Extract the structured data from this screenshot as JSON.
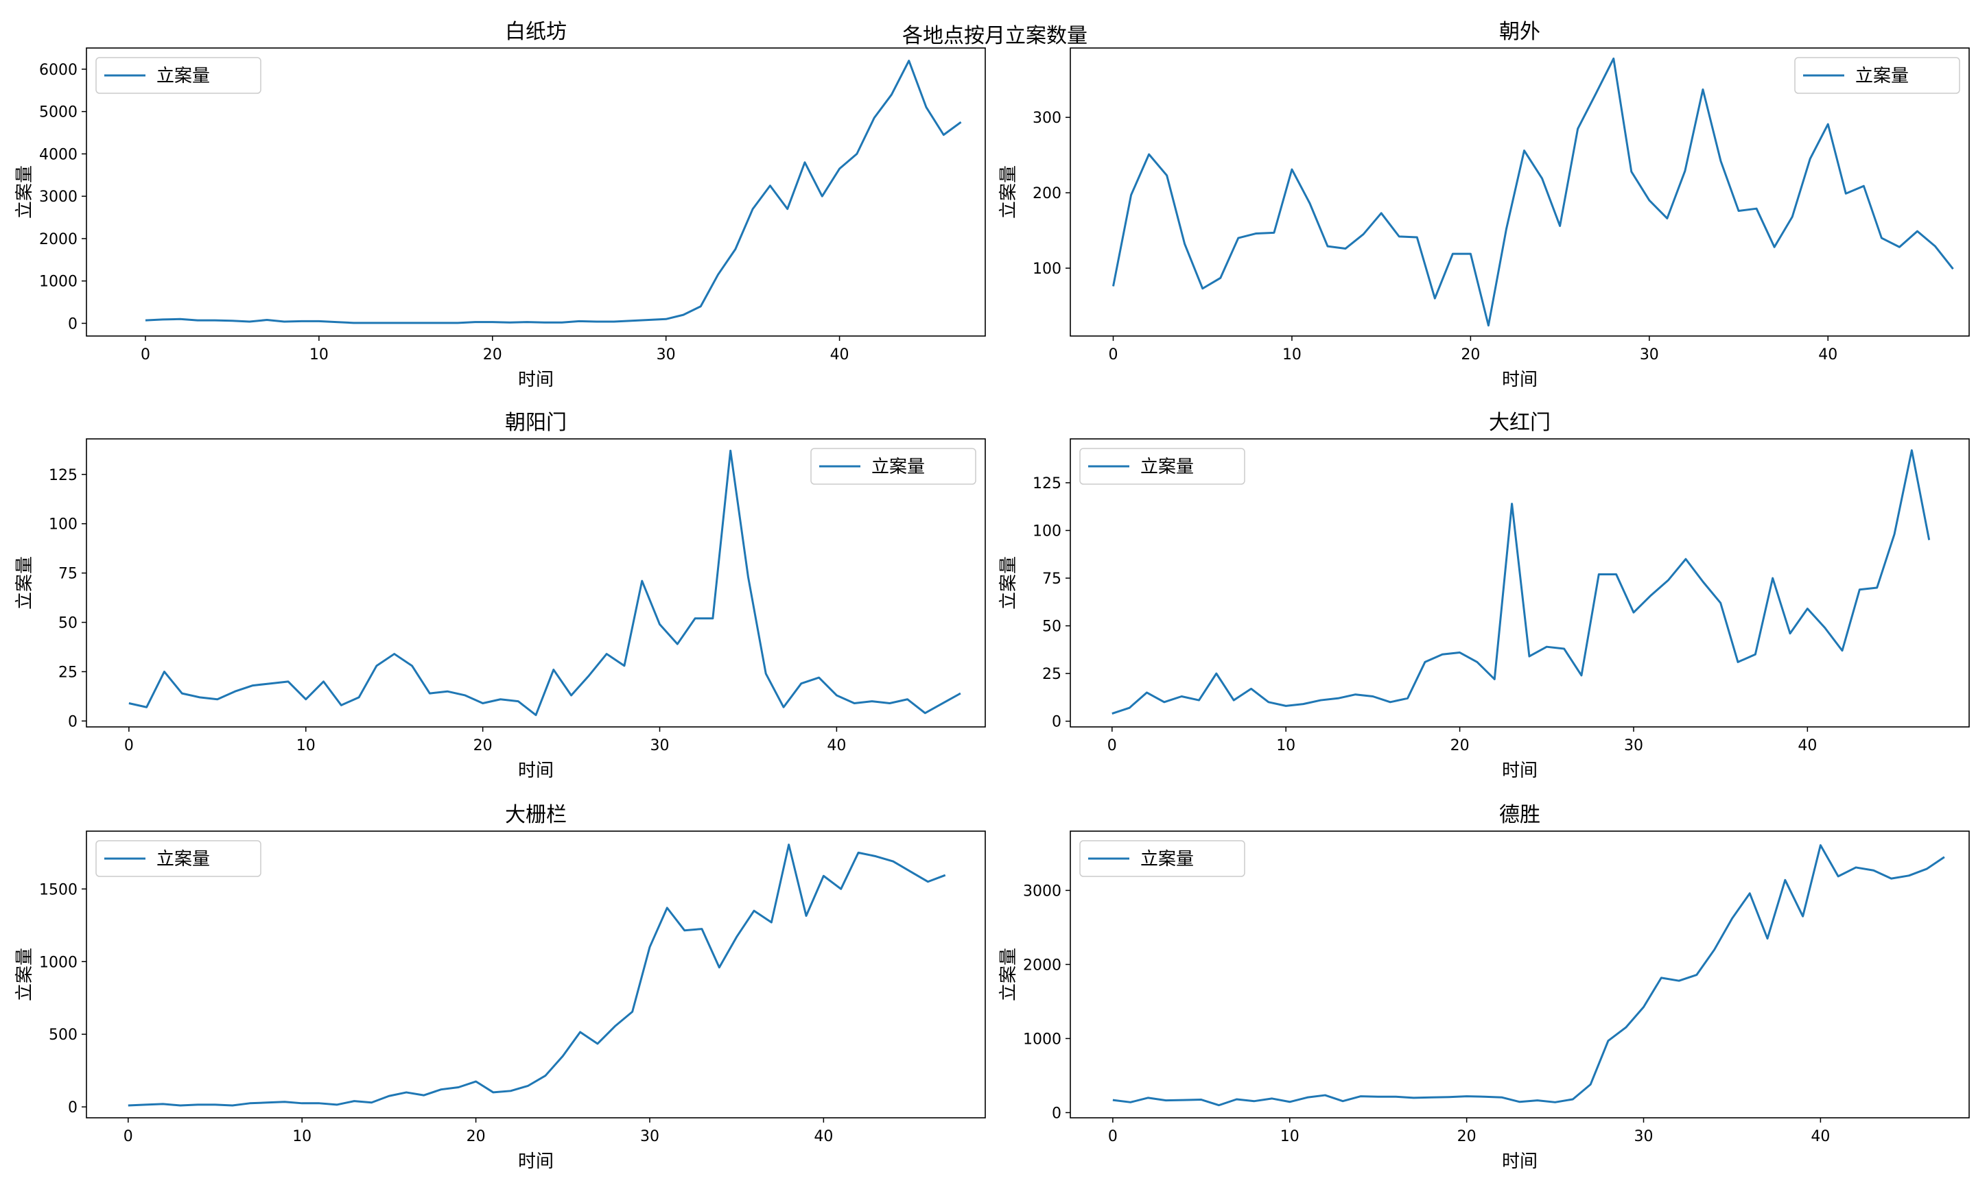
{
  "suptitle": "各地点按月立案数量",
  "colors": {
    "line": "#1f77b4",
    "axis": "#000000",
    "background": "#ffffff"
  },
  "chart_data": [
    {
      "type": "line",
      "title": "白纸坊",
      "xlabel": "时间",
      "ylabel": "立案量",
      "legend": "立案量",
      "legend_loc": "upper-left",
      "xlim": [
        -3.4,
        48.4
      ],
      "ylim": [
        -300,
        6500
      ],
      "xticks": [
        0,
        10,
        20,
        30,
        40
      ],
      "yticks": [
        0,
        1000,
        2000,
        3000,
        4000,
        5000,
        6000
      ],
      "ytick_labels": [
        "0",
        "1000",
        "2000",
        "3000",
        "4000",
        "5000",
        "6000"
      ],
      "x": [
        0,
        1,
        2,
        3,
        4,
        5,
        6,
        7,
        8,
        9,
        10,
        11,
        12,
        13,
        14,
        15,
        16,
        17,
        18,
        19,
        20,
        21,
        22,
        23,
        24,
        25,
        26,
        27,
        28,
        29,
        30,
        31,
        32,
        33,
        34,
        35,
        36,
        37,
        38,
        39,
        40,
        41,
        42,
        43,
        44,
        45,
        46,
        47
      ],
      "values": [
        70,
        90,
        100,
        70,
        70,
        60,
        40,
        80,
        40,
        50,
        50,
        30,
        10,
        10,
        10,
        10,
        10,
        10,
        10,
        30,
        30,
        20,
        30,
        20,
        20,
        50,
        40,
        40,
        60,
        80,
        100,
        200,
        400,
        1150,
        1750,
        2700,
        3250,
        2700,
        3800,
        3000,
        3650,
        4000,
        4850,
        5400,
        6200,
        5100,
        4450,
        4750
      ]
    },
    {
      "type": "line",
      "title": "朝外",
      "xlabel": "时间",
      "ylabel": "立案量",
      "legend": "立案量",
      "legend_loc": "upper-right",
      "xlim": [
        -2.4,
        47.9
      ],
      "ylim": [
        10,
        392
      ],
      "xticks": [
        0,
        10,
        20,
        30,
        40
      ],
      "yticks": [
        100,
        200,
        300
      ],
      "ytick_labels": [
        "100",
        "200",
        "300"
      ],
      "x": [
        0,
        1,
        2,
        3,
        4,
        5,
        6,
        7,
        8,
        9,
        10,
        11,
        12,
        13,
        14,
        15,
        16,
        17,
        18,
        19,
        20,
        21,
        22,
        23,
        24,
        25,
        26,
        27,
        28,
        29,
        30,
        31,
        32,
        33,
        34,
        35,
        36,
        37,
        38,
        39,
        40,
        41,
        42,
        43,
        44,
        45,
        46,
        47
      ],
      "values": [
        76,
        197,
        251,
        223,
        132,
        73,
        87,
        140,
        146,
        147,
        231,
        186,
        129,
        126,
        145,
        173,
        142,
        141,
        60,
        119,
        119,
        24,
        152,
        256,
        219,
        156,
        285,
        331,
        378,
        228,
        190,
        166,
        229,
        337,
        242,
        176,
        179,
        128,
        168,
        245,
        291,
        199,
        209,
        140,
        128,
        149,
        129,
        99
      ]
    },
    {
      "type": "line",
      "title": "朝阳门",
      "xlabel": "时间",
      "ylabel": "立案量",
      "legend": "立案量",
      "legend_loc": "upper-right",
      "xlim": [
        -2.4,
        48.4
      ],
      "ylim": [
        -3,
        143
      ],
      "xticks": [
        0,
        10,
        20,
        30,
        40
      ],
      "yticks": [
        0,
        25,
        50,
        75,
        100,
        125
      ],
      "ytick_labels": [
        "0",
        "25",
        "50",
        "75",
        "100",
        "125"
      ],
      "x": [
        0,
        1,
        2,
        3,
        4,
        5,
        6,
        7,
        8,
        9,
        10,
        11,
        12,
        13,
        14,
        15,
        16,
        17,
        18,
        19,
        20,
        21,
        22,
        23,
        24,
        25,
        26,
        27,
        28,
        29,
        30,
        31,
        32,
        33,
        34,
        35,
        36,
        37,
        38,
        39,
        40,
        41,
        42,
        43,
        44,
        45,
        46,
        47
      ],
      "values": [
        9,
        7,
        25,
        14,
        12,
        11,
        15,
        18,
        19,
        20,
        11,
        20,
        8,
        12,
        28,
        34,
        28,
        14,
        15,
        13,
        9,
        11,
        10,
        3,
        26,
        13,
        23,
        34,
        28,
        71,
        49,
        39,
        52,
        52,
        137,
        73,
        24,
        7,
        19,
        22,
        13,
        9,
        10,
        9,
        11,
        4,
        9,
        14
      ]
    },
    {
      "type": "line",
      "title": "大红门",
      "xlabel": "时间",
      "ylabel": "立案量",
      "legend": "立案量",
      "legend_loc": "upper-left",
      "xlim": [
        -2.4,
        49.3
      ],
      "ylim": [
        -3,
        148
      ],
      "xticks": [
        0,
        10,
        20,
        30,
        40
      ],
      "yticks": [
        0,
        25,
        50,
        75,
        100,
        125
      ],
      "ytick_labels": [
        "0",
        "25",
        "50",
        "75",
        "100",
        "125"
      ],
      "x": [
        0,
        1,
        2,
        3,
        4,
        5,
        6,
        7,
        8,
        9,
        10,
        11,
        12,
        13,
        14,
        15,
        16,
        17,
        18,
        19,
        20,
        21,
        22,
        23,
        24,
        25,
        26,
        27,
        28,
        29,
        30,
        31,
        32,
        33,
        34,
        35,
        36,
        37,
        38,
        39,
        40,
        41,
        42,
        43,
        44,
        45,
        46,
        47
      ],
      "values": [
        4,
        7,
        15,
        10,
        13,
        11,
        25,
        11,
        17,
        10,
        8,
        9,
        11,
        12,
        14,
        13,
        10,
        12,
        31,
        35,
        36,
        31,
        22,
        114,
        34,
        39,
        38,
        24,
        77,
        77,
        57,
        66,
        74,
        85,
        73,
        62,
        31,
        35,
        75,
        46,
        59,
        49,
        37,
        69,
        70,
        98,
        142,
        95
      ]
    },
    {
      "type": "line",
      "title": "大栅栏",
      "xlabel": "时间",
      "ylabel": "立案量",
      "legend": "立案量",
      "legend_loc": "upper-left",
      "xlim": [
        -2.4,
        49.3
      ],
      "ylim": [
        -75,
        1898
      ],
      "xticks": [
        0,
        10,
        20,
        30,
        40
      ],
      "yticks": [
        0,
        500,
        1000,
        1500
      ],
      "ytick_labels": [
        "0",
        "500",
        "1000",
        "1500"
      ],
      "x": [
        0,
        1,
        2,
        3,
        4,
        5,
        6,
        7,
        8,
        9,
        10,
        11,
        12,
        13,
        14,
        15,
        16,
        17,
        18,
        19,
        20,
        21,
        22,
        23,
        24,
        25,
        26,
        27,
        28,
        29,
        30,
        31,
        32,
        33,
        34,
        35,
        36,
        37,
        38,
        39,
        40,
        41,
        42,
        43,
        44,
        45,
        46,
        47
      ],
      "values": [
        10,
        15,
        20,
        10,
        15,
        15,
        10,
        25,
        30,
        35,
        25,
        25,
        15,
        40,
        30,
        75,
        100,
        80,
        120,
        135,
        175,
        100,
        110,
        145,
        215,
        350,
        515,
        435,
        555,
        655,
        1100,
        1370,
        1215,
        1225,
        960,
        1170,
        1350,
        1270,
        1805,
        1315,
        1590,
        1500,
        1750,
        1725,
        1690,
        1620,
        1550,
        1595
      ]
    },
    {
      "type": "line",
      "title": "德胜",
      "xlabel": "时间",
      "ylabel": "立案量",
      "legend": "立案量",
      "legend_loc": "upper-left",
      "xlim": [
        -2.4,
        48.4
      ],
      "ylim": [
        -70,
        3800
      ],
      "xticks": [
        0,
        10,
        20,
        30,
        40
      ],
      "yticks": [
        0,
        1000,
        2000,
        3000
      ],
      "ytick_labels": [
        "0",
        "1000",
        "2000",
        "3000"
      ],
      "x": [
        0,
        1,
        2,
        3,
        4,
        5,
        6,
        7,
        8,
        9,
        10,
        11,
        12,
        13,
        14,
        15,
        16,
        17,
        18,
        19,
        20,
        21,
        22,
        23,
        24,
        25,
        26,
        27,
        28,
        29,
        30,
        31,
        32,
        33,
        34,
        35,
        36,
        37,
        38,
        39,
        40,
        41,
        42,
        43,
        44,
        45,
        46,
        47
      ],
      "values": [
        170,
        140,
        200,
        165,
        170,
        175,
        100,
        180,
        155,
        190,
        145,
        205,
        235,
        155,
        220,
        215,
        215,
        200,
        205,
        210,
        220,
        215,
        205,
        145,
        165,
        140,
        180,
        380,
        970,
        1150,
        1425,
        1820,
        1780,
        1860,
        2200,
        2620,
        2960,
        2350,
        3140,
        2650,
        3610,
        3190,
        3310,
        3270,
        3160,
        3200,
        3290,
        3450
      ]
    }
  ]
}
